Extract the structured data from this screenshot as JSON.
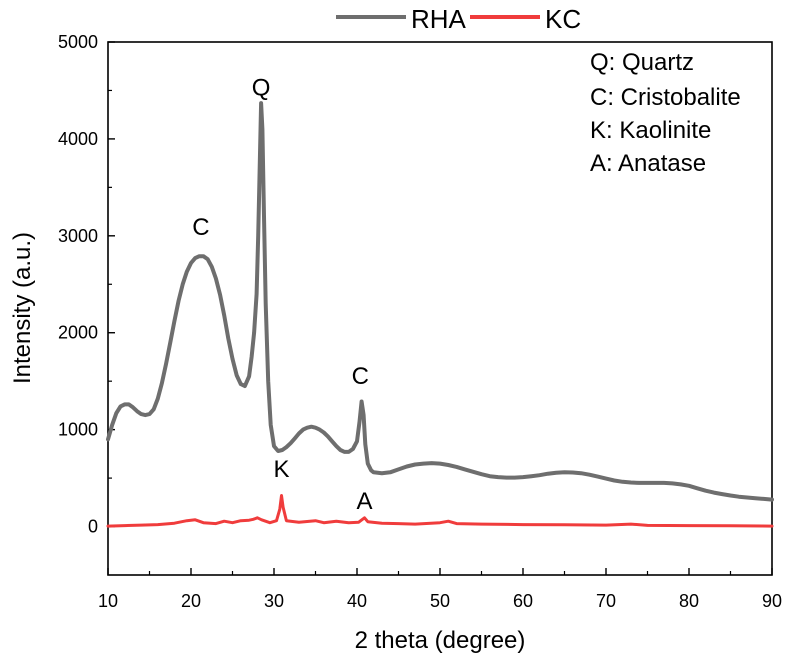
{
  "chart_data": {
    "type": "line",
    "title": "",
    "xlabel": "2 theta (degree)",
    "ylabel": "Intensity (a.u.)",
    "xlim": [
      10,
      90
    ],
    "ylim": [
      -500,
      5000
    ],
    "xticks": [
      10,
      20,
      30,
      40,
      50,
      60,
      70,
      80,
      90
    ],
    "yticks": [
      0,
      1000,
      2000,
      3000,
      4000,
      5000
    ],
    "grid": false,
    "legend_position": "top-center",
    "series": [
      {
        "name": "RHA",
        "color": "#6e6e6e",
        "points": [
          [
            10,
            900
          ],
          [
            10.5,
            1050
          ],
          [
            11,
            1170
          ],
          [
            11.5,
            1240
          ],
          [
            12,
            1260
          ],
          [
            12.5,
            1260
          ],
          [
            13,
            1230
          ],
          [
            13.5,
            1190
          ],
          [
            14,
            1160
          ],
          [
            14.5,
            1150
          ],
          [
            15,
            1160
          ],
          [
            15.5,
            1210
          ],
          [
            16,
            1320
          ],
          [
            16.5,
            1480
          ],
          [
            17,
            1680
          ],
          [
            17.5,
            1900
          ],
          [
            18,
            2120
          ],
          [
            18.5,
            2330
          ],
          [
            19,
            2500
          ],
          [
            19.5,
            2630
          ],
          [
            20,
            2720
          ],
          [
            20.5,
            2770
          ],
          [
            21,
            2790
          ],
          [
            21.5,
            2790
          ],
          [
            22,
            2760
          ],
          [
            22.5,
            2680
          ],
          [
            23,
            2560
          ],
          [
            23.5,
            2390
          ],
          [
            24,
            2180
          ],
          [
            24.5,
            1940
          ],
          [
            25,
            1730
          ],
          [
            25.5,
            1560
          ],
          [
            26,
            1470
          ],
          [
            26.5,
            1450
          ],
          [
            27,
            1550
          ],
          [
            27.3,
            1750
          ],
          [
            27.6,
            2000
          ],
          [
            27.9,
            2400
          ],
          [
            28.1,
            3000
          ],
          [
            28.3,
            3800
          ],
          [
            28.45,
            4370
          ],
          [
            28.6,
            4100
          ],
          [
            28.8,
            3200
          ],
          [
            29.0,
            2300
          ],
          [
            29.3,
            1500
          ],
          [
            29.6,
            1050
          ],
          [
            30,
            830
          ],
          [
            30.5,
            780
          ],
          [
            31,
            790
          ],
          [
            31.5,
            820
          ],
          [
            32,
            860
          ],
          [
            32.5,
            910
          ],
          [
            33,
            960
          ],
          [
            33.5,
            1000
          ],
          [
            34,
            1020
          ],
          [
            34.5,
            1030
          ],
          [
            35,
            1020
          ],
          [
            35.5,
            1000
          ],
          [
            36,
            970
          ],
          [
            36.5,
            930
          ],
          [
            37,
            880
          ],
          [
            37.5,
            830
          ],
          [
            38,
            790
          ],
          [
            38.5,
            770
          ],
          [
            39,
            770
          ],
          [
            39.5,
            800
          ],
          [
            40,
            880
          ],
          [
            40.3,
            1080
          ],
          [
            40.55,
            1290
          ],
          [
            40.8,
            1150
          ],
          [
            41.0,
            850
          ],
          [
            41.3,
            650
          ],
          [
            41.7,
            580
          ],
          [
            42,
            560
          ],
          [
            43,
            550
          ],
          [
            44,
            560
          ],
          [
            45,
            590
          ],
          [
            46,
            620
          ],
          [
            47,
            640
          ],
          [
            48,
            650
          ],
          [
            49,
            655
          ],
          [
            50,
            650
          ],
          [
            51,
            635
          ],
          [
            52,
            615
          ],
          [
            53,
            590
          ],
          [
            54,
            565
          ],
          [
            55,
            540
          ],
          [
            56,
            520
          ],
          [
            57,
            510
          ],
          [
            58,
            505
          ],
          [
            59,
            505
          ],
          [
            60,
            510
          ],
          [
            61,
            520
          ],
          [
            62,
            530
          ],
          [
            63,
            545
          ],
          [
            64,
            555
          ],
          [
            65,
            560
          ],
          [
            66,
            558
          ],
          [
            67,
            550
          ],
          [
            68,
            535
          ],
          [
            69,
            515
          ],
          [
            70,
            495
          ],
          [
            71,
            475
          ],
          [
            72,
            462
          ],
          [
            73,
            455
          ],
          [
            74,
            450
          ],
          [
            75,
            450
          ],
          [
            76,
            450
          ],
          [
            77,
            450
          ],
          [
            78,
            445
          ],
          [
            79,
            435
          ],
          [
            80,
            420
          ],
          [
            81,
            395
          ],
          [
            82,
            370
          ],
          [
            83,
            350
          ],
          [
            84,
            335
          ],
          [
            85,
            320
          ],
          [
            86,
            308
          ],
          [
            87,
            300
          ],
          [
            88,
            292
          ],
          [
            89,
            285
          ],
          [
            90,
            278
          ]
        ]
      },
      {
        "name": "KC",
        "color": "#f03c3c",
        "points": [
          [
            10,
            5
          ],
          [
            12,
            10
          ],
          [
            14,
            15
          ],
          [
            16,
            20
          ],
          [
            18,
            35
          ],
          [
            19.5,
            60
          ],
          [
            20.5,
            70
          ],
          [
            21.5,
            40
          ],
          [
            23,
            30
          ],
          [
            24,
            55
          ],
          [
            25,
            40
          ],
          [
            26,
            60
          ],
          [
            27,
            65
          ],
          [
            27.5,
            75
          ],
          [
            28,
            90
          ],
          [
            28.5,
            70
          ],
          [
            29.5,
            40
          ],
          [
            30.3,
            60
          ],
          [
            30.7,
            180
          ],
          [
            30.9,
            320
          ],
          [
            31.1,
            200
          ],
          [
            31.5,
            60
          ],
          [
            33,
            45
          ],
          [
            35,
            60
          ],
          [
            36,
            40
          ],
          [
            37.5,
            55
          ],
          [
            39,
            40
          ],
          [
            40.2,
            45
          ],
          [
            40.9,
            90
          ],
          [
            41.3,
            50
          ],
          [
            43,
            35
          ],
          [
            45,
            30
          ],
          [
            47,
            25
          ],
          [
            50,
            40
          ],
          [
            51,
            55
          ],
          [
            52,
            30
          ],
          [
            55,
            25
          ],
          [
            60,
            20
          ],
          [
            65,
            18
          ],
          [
            70,
            15
          ],
          [
            73,
            25
          ],
          [
            75,
            12
          ],
          [
            80,
            10
          ],
          [
            85,
            8
          ],
          [
            90,
            5
          ]
        ]
      }
    ],
    "peak_labels": [
      {
        "text": "Q",
        "x": 28.45,
        "y": 4450
      },
      {
        "text": "C",
        "x": 21.2,
        "y": 3010
      },
      {
        "text": "C",
        "x": 40.4,
        "y": 1470
      },
      {
        "text": "K",
        "x": 30.9,
        "y": 510
      },
      {
        "text": "A",
        "x": 40.9,
        "y": 180
      }
    ],
    "annotations": [
      "Q: Quartz",
      "C: Cristobalite",
      "K: Kaolinite",
      "A: Anatase"
    ]
  }
}
